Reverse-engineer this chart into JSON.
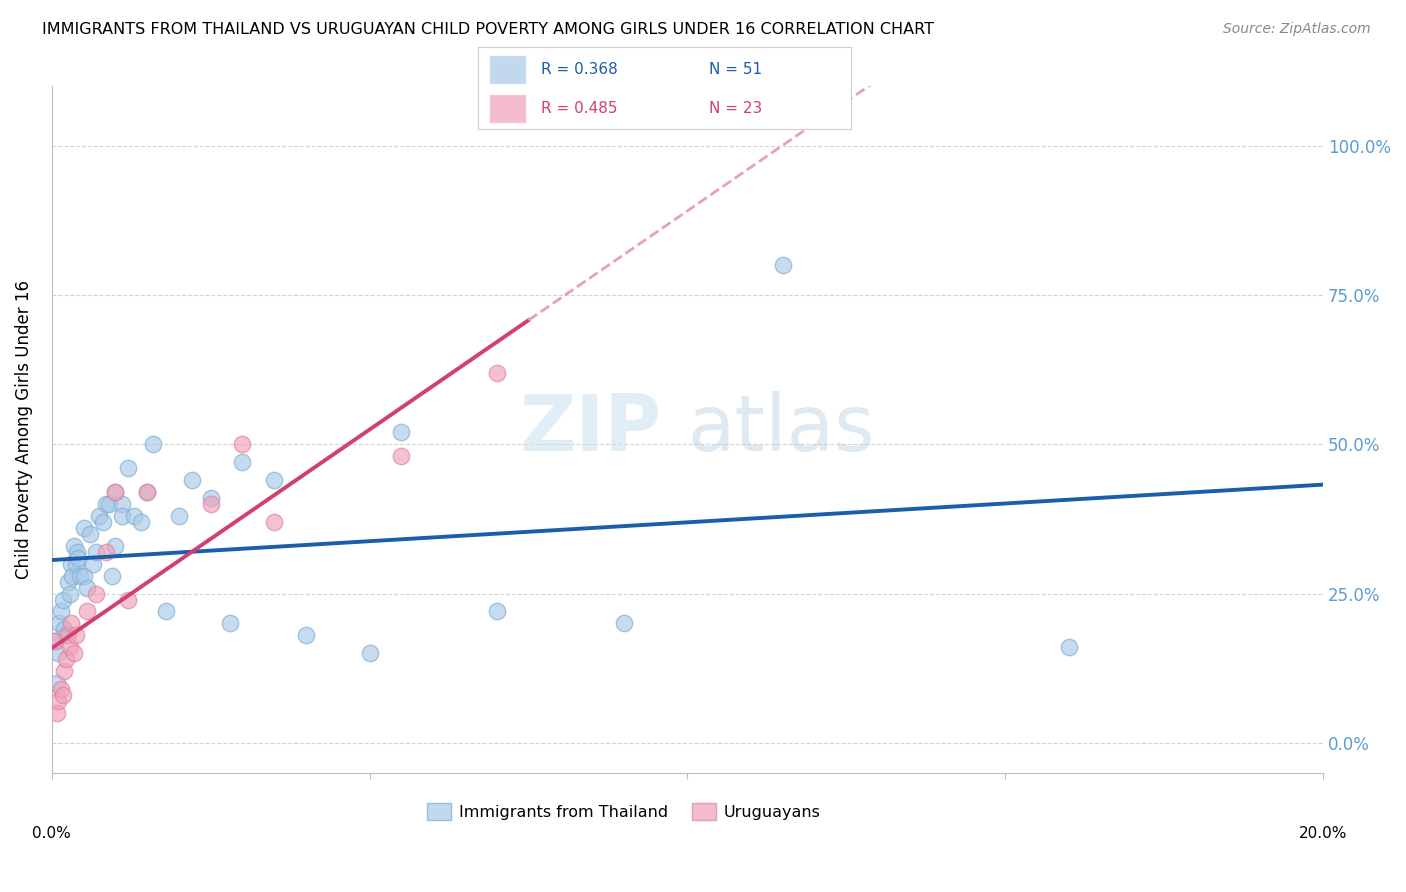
{
  "title": "IMMIGRANTS FROM THAILAND VS URUGUAYAN CHILD POVERTY AMONG GIRLS UNDER 16 CORRELATION CHART",
  "source": "Source: ZipAtlas.com",
  "ylabel": "Child Poverty Among Girls Under 16",
  "ytick_labels": [
    "0.0%",
    "25.0%",
    "50.0%",
    "75.0%",
    "100.0%"
  ],
  "ytick_values": [
    0,
    25,
    50,
    75,
    100
  ],
  "xlim": [
    0,
    20
  ],
  "ylim": [
    -5,
    110
  ],
  "legend1_r": "0.368",
  "legend1_n": "51",
  "legend2_r": "0.485",
  "legend2_n": "23",
  "blue_fill": "#a8c8e8",
  "blue_edge": "#7aaed0",
  "pink_fill": "#f0a0b8",
  "pink_edge": "#e080a0",
  "blue_line": "#1a5fa8",
  "pink_line": "#d04070",
  "pink_dash": "#e8a0b8",
  "blue_x": [
    0.05,
    0.08,
    0.1,
    0.12,
    0.15,
    0.18,
    0.2,
    0.22,
    0.25,
    0.28,
    0.3,
    0.32,
    0.35,
    0.38,
    0.4,
    0.42,
    0.45,
    0.5,
    0.5,
    0.55,
    0.6,
    0.65,
    0.7,
    0.75,
    0.8,
    0.85,
    0.9,
    0.95,
    1.0,
    1.0,
    1.1,
    1.1,
    1.2,
    1.3,
    1.4,
    1.5,
    1.6,
    1.8,
    2.0,
    2.2,
    2.5,
    2.8,
    3.0,
    3.5,
    4.0,
    5.0,
    5.5,
    7.0,
    9.0,
    11.5,
    16.0
  ],
  "blue_y": [
    17,
    10,
    15,
    20,
    22,
    24,
    19,
    18,
    27,
    25,
    30,
    28,
    33,
    30,
    32,
    31,
    28,
    36,
    28,
    26,
    35,
    30,
    32,
    38,
    37,
    40,
    40,
    28,
    42,
    33,
    40,
    38,
    46,
    38,
    37,
    42,
    50,
    22,
    38,
    44,
    41,
    20,
    47,
    44,
    18,
    15,
    52,
    22,
    20,
    80,
    16
  ],
  "pink_x": [
    0.05,
    0.08,
    0.1,
    0.15,
    0.18,
    0.2,
    0.22,
    0.25,
    0.28,
    0.3,
    0.35,
    0.38,
    0.55,
    0.7,
    0.85,
    1.0,
    1.2,
    1.5,
    2.5,
    3.0,
    3.5,
    5.5,
    7.0
  ],
  "pink_y": [
    17,
    5,
    7,
    9,
    8,
    12,
    14,
    18,
    16,
    20,
    15,
    18,
    22,
    25,
    32,
    42,
    24,
    42,
    40,
    50,
    37,
    48,
    62
  ]
}
